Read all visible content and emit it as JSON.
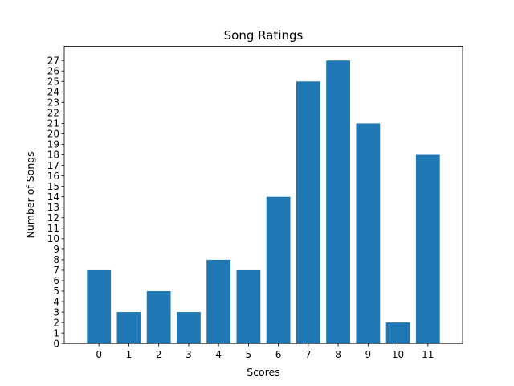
{
  "chart_data": {
    "type": "bar",
    "title": "Song Ratings",
    "xlabel": "Scores",
    "ylabel": "Number of Songs",
    "categories": [
      "0",
      "1",
      "2",
      "3",
      "4",
      "5",
      "6",
      "7",
      "8",
      "9",
      "10",
      "11"
    ],
    "values": [
      7,
      3,
      5,
      3,
      8,
      7,
      14,
      25,
      27,
      21,
      2,
      18
    ],
    "ylim": [
      0,
      28.35
    ],
    "yticks": [
      0,
      1,
      2,
      3,
      4,
      5,
      6,
      7,
      8,
      9,
      10,
      11,
      12,
      13,
      14,
      15,
      16,
      17,
      18,
      19,
      20,
      21,
      22,
      23,
      24,
      25,
      26,
      27
    ],
    "bar_color": "#1f77b4",
    "grid": false,
    "legend": "none"
  }
}
